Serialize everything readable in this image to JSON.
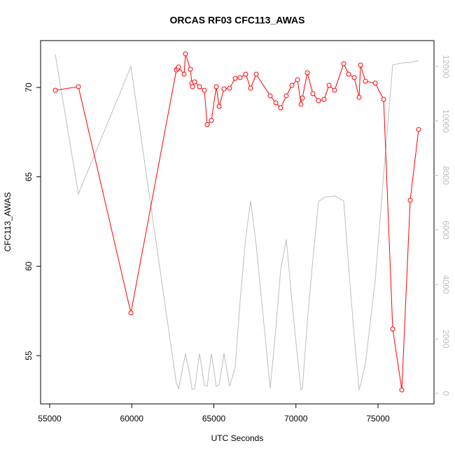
{
  "chart_data": {
    "type": "line",
    "title": "ORCAS RF03 CFC113_AWAS",
    "x_label": "UTC Seconds",
    "y_label": "CFC113_AWAS",
    "x": [
      55341,
      56748,
      59947,
      62718,
      62804,
      62846,
      63188,
      63273,
      63571,
      63657,
      63699,
      63827,
      64126,
      64424,
      64595,
      64851,
      65149,
      65320,
      65618,
      65959,
      66300,
      66599,
      66940,
      67239,
      67580,
      68433,
      68774,
      69072,
      69413,
      69755,
      70096,
      70309,
      70394,
      70693,
      71034,
      71375,
      71716,
      72015,
      72356,
      72910,
      73209,
      73550,
      73849,
      73934,
      74233,
      74830,
      75342,
      75896,
      76450,
      76962,
      77473
    ],
    "series": [
      {
        "color": "#ff0000",
        "markers": true,
        "axis": "y",
        "values": [
          69.84,
          70.04,
          57.39,
          70.98,
          71.06,
          71.14,
          70.74,
          71.88,
          71.02,
          70.24,
          70.04,
          70.31,
          70.04,
          69.84,
          67.92,
          68.16,
          70.04,
          68.94,
          69.92,
          69.96,
          70.51,
          70.55,
          70.74,
          69.96,
          70.74,
          69.53,
          69.14,
          68.86,
          69.53,
          70.12,
          70.43,
          69.06,
          69.41,
          70.82,
          69.65,
          69.26,
          69.33,
          70.12,
          69.84,
          71.33,
          70.74,
          70.55,
          69.45,
          71.25,
          70.35,
          70.24,
          69.33,
          56.49,
          53.08,
          63.69,
          67.65
        ]
      },
      {
        "color": "#bebebe",
        "markers": false,
        "axis": "y2",
        "values": [
          12440,
          7325,
          12000,
          360,
          257,
          154,
          1208,
          1465,
          565,
          180,
          154,
          154,
          1465,
          308,
          257,
          1465,
          257,
          308,
          1465,
          257,
          950,
          3390,
          5705,
          7070,
          5450,
          180,
          2365,
          4550,
          5655,
          3390,
          1335,
          130,
          180,
          2620,
          4935,
          7040,
          7195,
          7220,
          7250,
          7070,
          4680,
          2110,
          130,
          308,
          1080,
          4165,
          8020,
          12055,
          12130,
          12155,
          12210
        ]
      }
    ],
    "xlim": [
      54446,
      78411
    ],
    "xticks": [
      55000,
      60000,
      65000,
      70000,
      75000
    ],
    "ylim": [
      52.3,
      72.62
    ],
    "yticks": [
      55,
      60,
      65,
      70
    ],
    "y2lim": [
      -385,
      12951
    ],
    "y2ticks": [
      0,
      2000,
      4000,
      6000,
      8000,
      10000,
      12000
    ],
    "y2_tick_color": "#bebebe"
  }
}
